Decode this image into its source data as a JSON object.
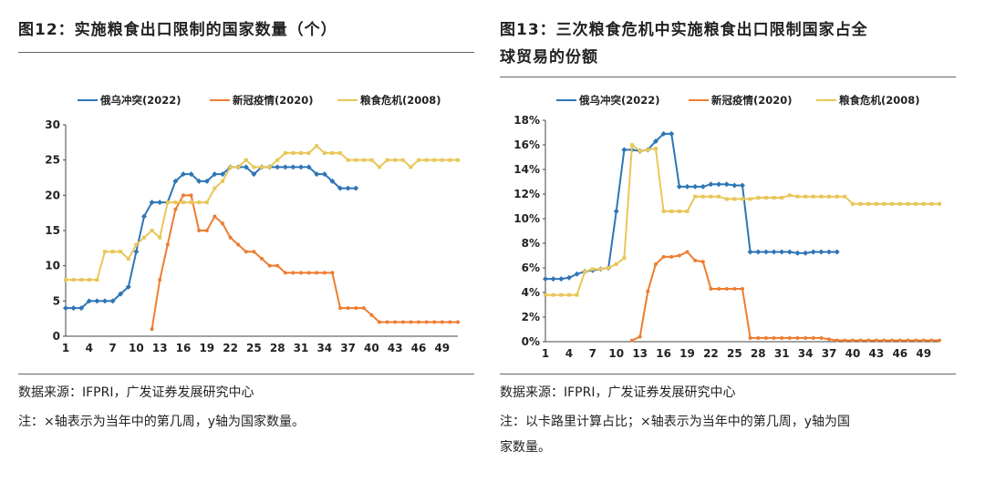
{
  "left": {
    "title": "图12：实施粮食出口限制的国家数量（个）",
    "source": "数据来源：IFPRI，广发证券发展研究中心",
    "note": "注：×轴表示为当年中的第几周，y轴为国家数量。"
  },
  "right": {
    "title_line1": "图13：三次粮食危机中实施粮食出口限制国家占全",
    "title_line2": "球贸易的份额",
    "source": "数据来源：IFPRI，广发证券发展研究中心",
    "note_line1": "注：以卡路里计算占比；×轴表示为当年中的第几周，y轴为国",
    "note_line2": "家数量。"
  },
  "colors": {
    "ukraine": "#2e75b6",
    "covid": "#ed7d31",
    "crisis2008": "#e8c75a"
  },
  "chart_data": [
    {
      "type": "line",
      "ylim": [
        0,
        30
      ],
      "yticks": [
        0,
        5,
        10,
        15,
        20,
        25,
        30
      ],
      "xlim": [
        1,
        51
      ],
      "xticks": [
        1,
        4,
        7,
        10,
        13,
        16,
        19,
        22,
        25,
        28,
        31,
        34,
        37,
        40,
        43,
        46,
        49
      ],
      "series": [
        {
          "name": "俄乌冲突(2022)",
          "key": "ukraine",
          "marker": "diamond",
          "x_start": 1,
          "values": [
            4,
            4,
            4,
            5,
            5,
            5,
            5,
            6,
            7,
            12,
            17,
            19,
            19,
            19,
            22,
            23,
            23,
            22,
            22,
            23,
            23,
            24,
            24,
            24,
            23,
            24,
            24,
            24,
            24,
            24,
            24,
            24,
            23,
            23,
            22,
            21,
            21,
            21
          ]
        },
        {
          "name": "新冠疫情(2020)",
          "key": "covid",
          "marker": "circle",
          "x_start": 12,
          "values": [
            1,
            8,
            13,
            18,
            20,
            20,
            15,
            15,
            17,
            16,
            14,
            13,
            12,
            12,
            11,
            10,
            10,
            9,
            9,
            9,
            9,
            9,
            9,
            9,
            4,
            4,
            4,
            4,
            3,
            2,
            2,
            2,
            2,
            2,
            2,
            2,
            2,
            2,
            2,
            2
          ]
        },
        {
          "name": "粮食危机(2008)",
          "key": "crisis2008",
          "marker": "square",
          "x_start": 1,
          "values": [
            8,
            8,
            8,
            8,
            8,
            12,
            12,
            12,
            11,
            13,
            14,
            15,
            14,
            19,
            19,
            19,
            19,
            19,
            19,
            21,
            22,
            24,
            24,
            25,
            24,
            24,
            24,
            25,
            26,
            26,
            26,
            26,
            27,
            26,
            26,
            26,
            25,
            25,
            25,
            25,
            24,
            25,
            25,
            25,
            24,
            25,
            25,
            25,
            25,
            25,
            25
          ]
        }
      ]
    },
    {
      "type": "line",
      "ylim": [
        0,
        18
      ],
      "yticks": [
        "0%",
        "2%",
        "4%",
        "6%",
        "8%",
        "10%",
        "12%",
        "14%",
        "16%",
        "18%"
      ],
      "xlim": [
        1,
        51
      ],
      "xticks": [
        1,
        4,
        7,
        10,
        13,
        16,
        19,
        22,
        25,
        28,
        31,
        34,
        37,
        40,
        43,
        46,
        49
      ],
      "series": [
        {
          "name": "俄乌冲突(2022)",
          "key": "ukraine",
          "marker": "diamond",
          "x_start": 1,
          "values": [
            5.1,
            5.1,
            5.1,
            5.2,
            5.5,
            5.7,
            5.8,
            5.9,
            6.0,
            10.6,
            15.6,
            15.6,
            15.5,
            15.6,
            16.3,
            16.9,
            16.9,
            12.6,
            12.6,
            12.6,
            12.6,
            12.8,
            12.8,
            12.8,
            12.7,
            12.7,
            7.3,
            7.3,
            7.3,
            7.3,
            7.3,
            7.3,
            7.2,
            7.2,
            7.3,
            7.3,
            7.3,
            7.3
          ]
        },
        {
          "name": "新冠疫情(2020)",
          "key": "covid",
          "marker": "circle",
          "x_start": 12,
          "values": [
            0.1,
            0.4,
            4.1,
            6.3,
            6.9,
            6.9,
            7.0,
            7.3,
            6.6,
            6.5,
            4.3,
            4.3,
            4.3,
            4.3,
            4.3,
            0.3,
            0.3,
            0.3,
            0.3,
            0.3,
            0.3,
            0.3,
            0.3,
            0.3,
            0.3,
            0.2,
            0.1,
            0.1,
            0.1,
            0.1,
            0.1,
            0.1,
            0.1,
            0.1,
            0.1,
            0.1,
            0.1,
            0.1,
            0.1,
            0.1
          ]
        },
        {
          "name": "粮食危机(2008)",
          "key": "crisis2008",
          "marker": "square",
          "x_start": 1,
          "values": [
            3.8,
            3.8,
            3.8,
            3.8,
            3.8,
            5.7,
            5.9,
            5.9,
            6.0,
            6.3,
            6.8,
            16.0,
            15.5,
            15.6,
            15.7,
            10.6,
            10.6,
            10.6,
            10.6,
            11.8,
            11.8,
            11.8,
            11.8,
            11.6,
            11.6,
            11.6,
            11.6,
            11.7,
            11.7,
            11.7,
            11.7,
            11.9,
            11.8,
            11.8,
            11.8,
            11.8,
            11.8,
            11.8,
            11.8,
            11.2,
            11.2,
            11.2,
            11.2,
            11.2,
            11.2,
            11.2,
            11.2,
            11.2,
            11.2,
            11.2,
            11.2
          ]
        }
      ]
    }
  ]
}
